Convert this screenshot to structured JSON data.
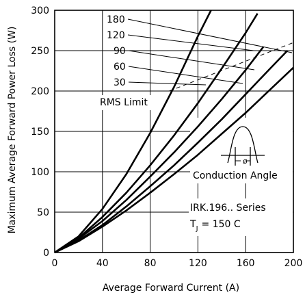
{
  "chart_data": {
    "type": "line",
    "xlabel": "Average Forward Current (A)",
    "ylabel": "Maximum Average Forward Power Loss (W)",
    "xlim": [
      0,
      200
    ],
    "ylim": [
      0,
      300
    ],
    "x_ticks": [
      "0",
      "40",
      "80",
      "120",
      "160",
      "200"
    ],
    "y_ticks": [
      "0",
      "50",
      "100",
      "150",
      "200",
      "250",
      "300"
    ],
    "grid": true,
    "series": [
      {
        "name": "180",
        "points": [
          [
            0,
            0
          ],
          [
            20,
            14
          ],
          [
            40,
            32
          ],
          [
            60,
            52
          ],
          [
            80,
            74
          ],
          [
            100,
            97
          ],
          [
            120,
            121
          ],
          [
            140,
            147
          ],
          [
            160,
            173
          ],
          [
            180,
            201
          ],
          [
            200,
            229
          ]
        ]
      },
      {
        "name": "120",
        "points": [
          [
            0,
            0
          ],
          [
            20,
            15
          ],
          [
            40,
            34
          ],
          [
            60,
            57
          ],
          [
            80,
            82
          ],
          [
            100,
            108
          ],
          [
            120,
            136
          ],
          [
            140,
            165
          ],
          [
            160,
            196
          ],
          [
            180,
            227
          ],
          [
            195,
            250
          ]
        ]
      },
      {
        "name": "90",
        "points": [
          [
            0,
            0
          ],
          [
            20,
            17
          ],
          [
            40,
            39
          ],
          [
            60,
            65
          ],
          [
            80,
            94
          ],
          [
            100,
            124
          ],
          [
            120,
            156
          ],
          [
            140,
            190
          ],
          [
            160,
            226
          ],
          [
            175,
            255
          ]
        ]
      },
      {
        "name": "60",
        "points": [
          [
            0,
            0
          ],
          [
            20,
            18
          ],
          [
            40,
            44
          ],
          [
            60,
            74
          ],
          [
            80,
            108
          ],
          [
            100,
            145
          ],
          [
            120,
            185
          ],
          [
            140,
            228
          ],
          [
            160,
            272
          ],
          [
            170,
            296
          ]
        ]
      },
      {
        "name": "30",
        "points": [
          [
            0,
            0
          ],
          [
            20,
            20
          ],
          [
            40,
            54
          ],
          [
            60,
            97
          ],
          [
            80,
            148
          ],
          [
            100,
            205
          ],
          [
            120,
            268
          ],
          [
            131,
            300
          ]
        ]
      }
    ],
    "rms_limit": [
      [
        96,
        200
      ],
      [
        200,
        260
      ]
    ],
    "annotations": {
      "rms_limit": "RMS Limit",
      "conduction_angle": "Conduction Angle",
      "phi": "ø",
      "series_name": "IRK.196.. Series",
      "tj_prefix": "T",
      "tj_sub": "J",
      "tj_value": "= 150 C"
    }
  }
}
